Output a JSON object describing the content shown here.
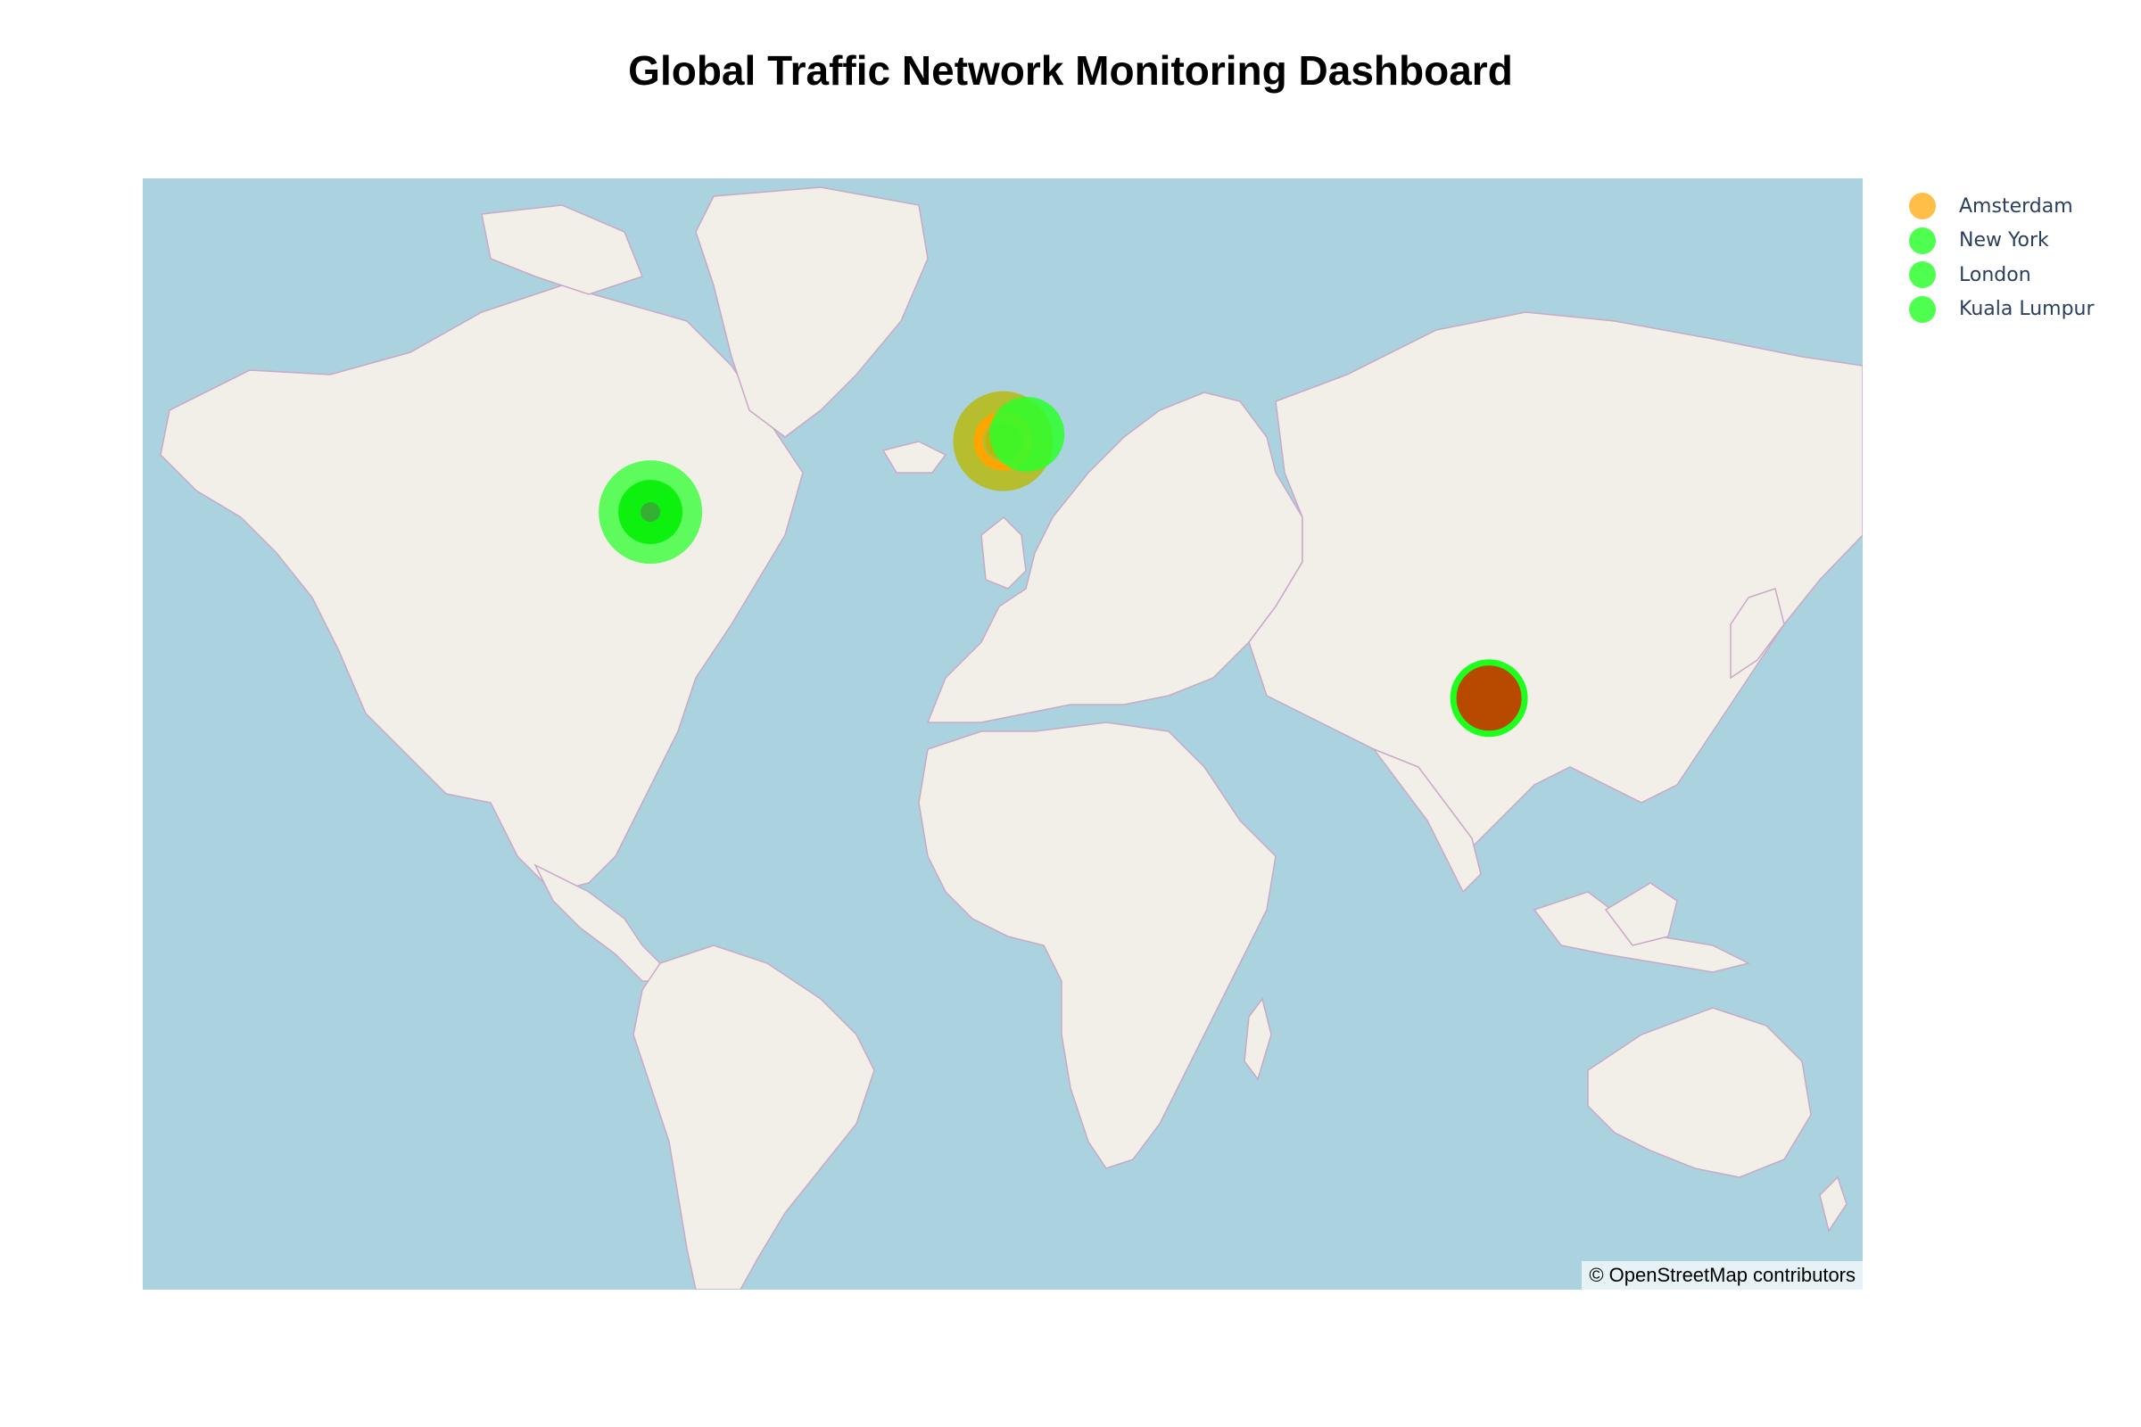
{
  "title": "Global Traffic Network Monitoring Dashboard",
  "attribution": "© OpenStreetMap contributors",
  "colors": {
    "water": "#aad3df",
    "land": "#f2efe9",
    "border": "#c9a9c6"
  },
  "legend": [
    {
      "label": "Amsterdam",
      "color": "#ffb733"
    },
    {
      "label": "New York",
      "color": "#3cff3c"
    },
    {
      "label": "London",
      "color": "#3cff3c"
    },
    {
      "label": "Kuala Lumpur",
      "color": "#3cff3c"
    }
  ],
  "markers": [
    {
      "city": "New York",
      "lat": 40.7,
      "lon": -74.0,
      "color": "#2cff2c",
      "shape": "rings-green"
    },
    {
      "city": "London",
      "lat": 51.5,
      "lon": -0.1,
      "color": "#b8b810",
      "shape": "olive-with-orange-ring"
    },
    {
      "city": "Amsterdam",
      "lat": 52.4,
      "lon": 4.9,
      "color": "#2cff2c",
      "shape": "green-behind"
    },
    {
      "city": "Kuala Lumpur",
      "lat": 3.1,
      "lon": 101.7,
      "color": "#b84a00",
      "shape": "brown-with-green-ring"
    }
  ]
}
